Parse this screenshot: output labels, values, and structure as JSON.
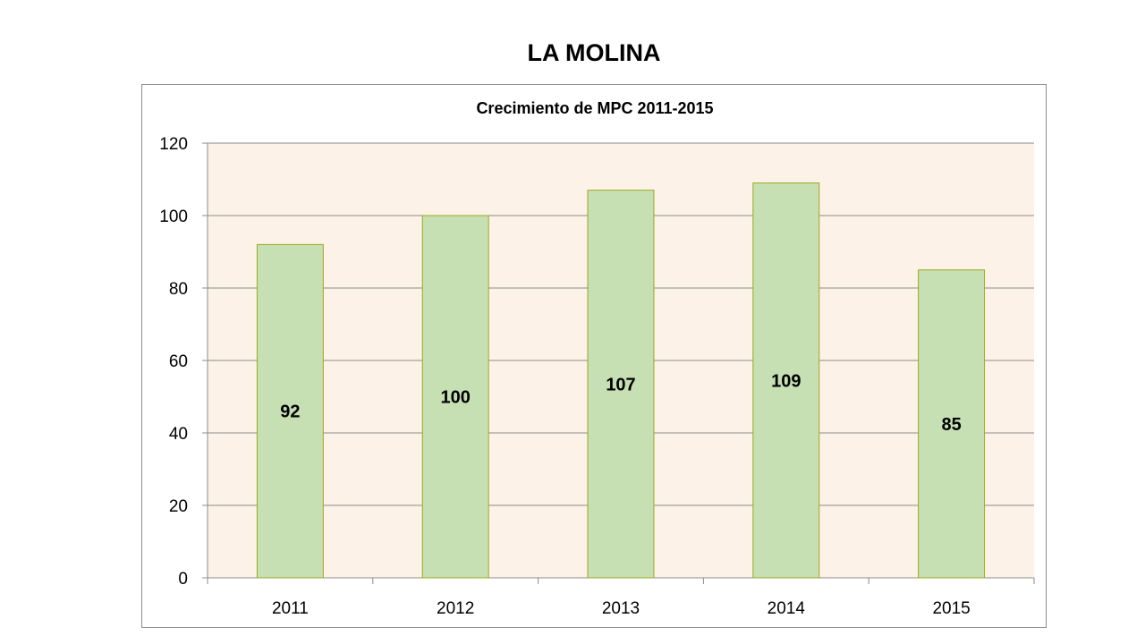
{
  "page": {
    "title": "LA MOLINA"
  },
  "chart_data": {
    "type": "bar",
    "title": "Crecimiento de MPC 2011-2015",
    "categories": [
      "2011",
      "2012",
      "2013",
      "2014",
      "2015"
    ],
    "values": [
      92,
      100,
      107,
      109,
      85
    ],
    "data_labels": [
      "92",
      "100",
      "107",
      "109",
      "85"
    ],
    "ylim": [
      0,
      120
    ],
    "yticks": [
      0,
      20,
      40,
      60,
      80,
      100,
      120
    ],
    "grid": true,
    "legend": "none",
    "colors": {
      "plot_background": "#fdf2e7",
      "bar_fill": "#c6e0b4",
      "bar_stroke": "#9aaa1c",
      "gridline": "#8c8c8c",
      "text": "#000000"
    }
  }
}
